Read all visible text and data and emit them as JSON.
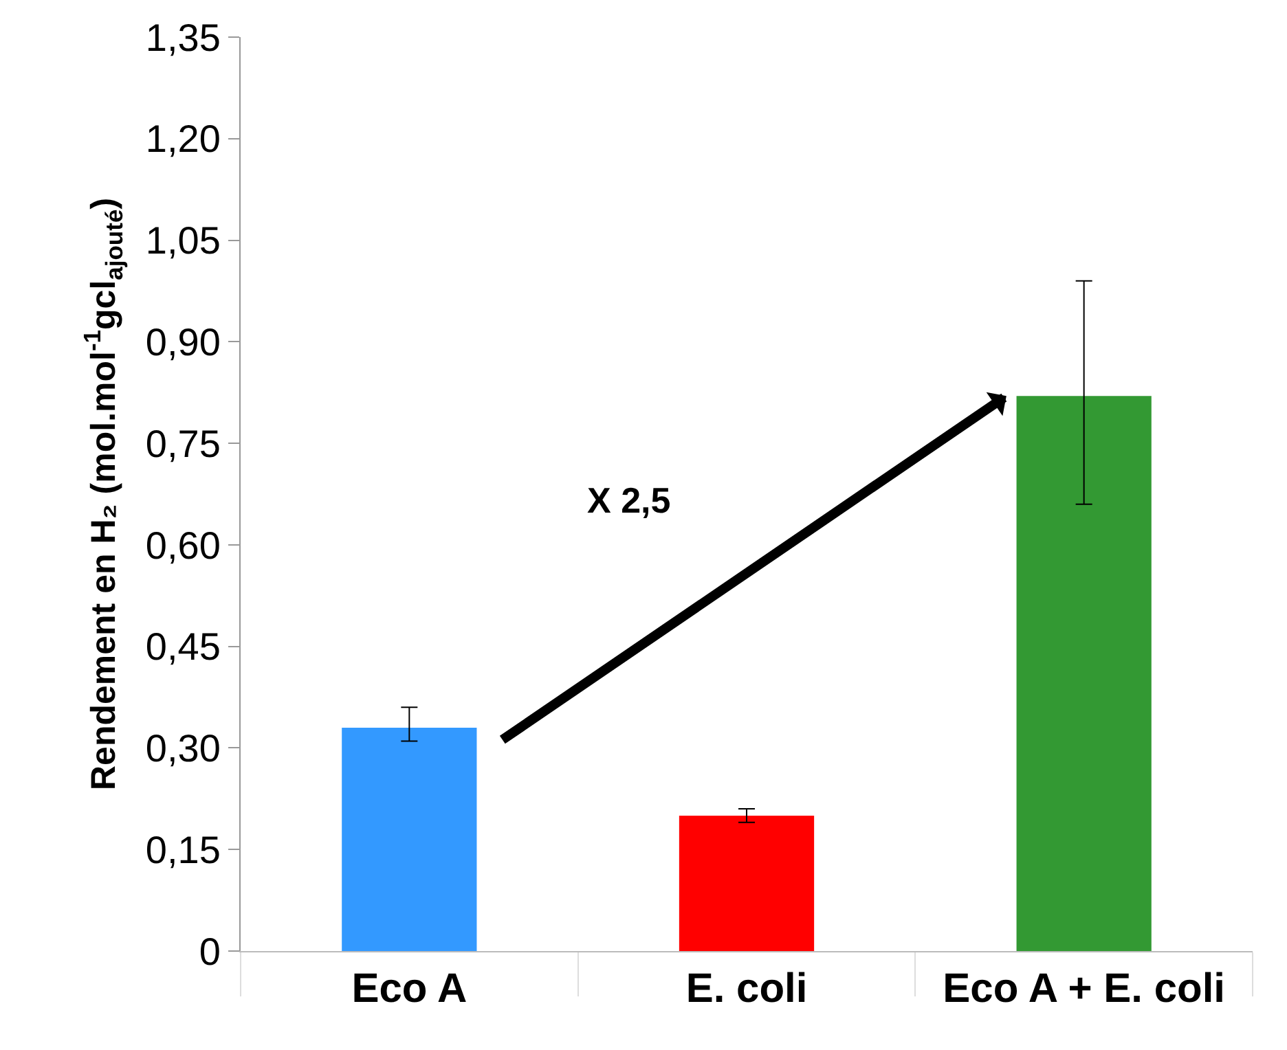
{
  "chart_data": {
    "type": "bar",
    "ylabel": "Rendement en H₂ (mol.mol$^{-1}$gcl$_{ajouté}$)",
    "categories": [
      "Eco A",
      "E. coli",
      "Eco A + E. coli"
    ],
    "values": [
      0.33,
      0.2,
      0.82
    ],
    "colors": [
      "#3399ff",
      "#ff0000",
      "#339933"
    ],
    "errors": [
      [
        0.31,
        0.36
      ],
      [
        0.19,
        0.21
      ],
      [
        0.66,
        0.99
      ]
    ],
    "ylim": [
      0,
      1.35
    ],
    "yticks": [
      {
        "value": 0,
        "label": "0"
      },
      {
        "value": 0.15,
        "label": "0,15"
      },
      {
        "value": 0.3,
        "label": "0,30"
      },
      {
        "value": 0.45,
        "label": "0,45"
      },
      {
        "value": 0.6,
        "label": "0,60"
      },
      {
        "value": 0.75,
        "label": "0,75"
      },
      {
        "value": 0.9,
        "label": "0,90"
      },
      {
        "value": 1.05,
        "label": "1,05"
      },
      {
        "value": 1.2,
        "label": "1,20"
      },
      {
        "value": 1.35,
        "label": "1,35"
      }
    ],
    "grid": false,
    "annotations": [
      "X 2,5"
    ]
  }
}
